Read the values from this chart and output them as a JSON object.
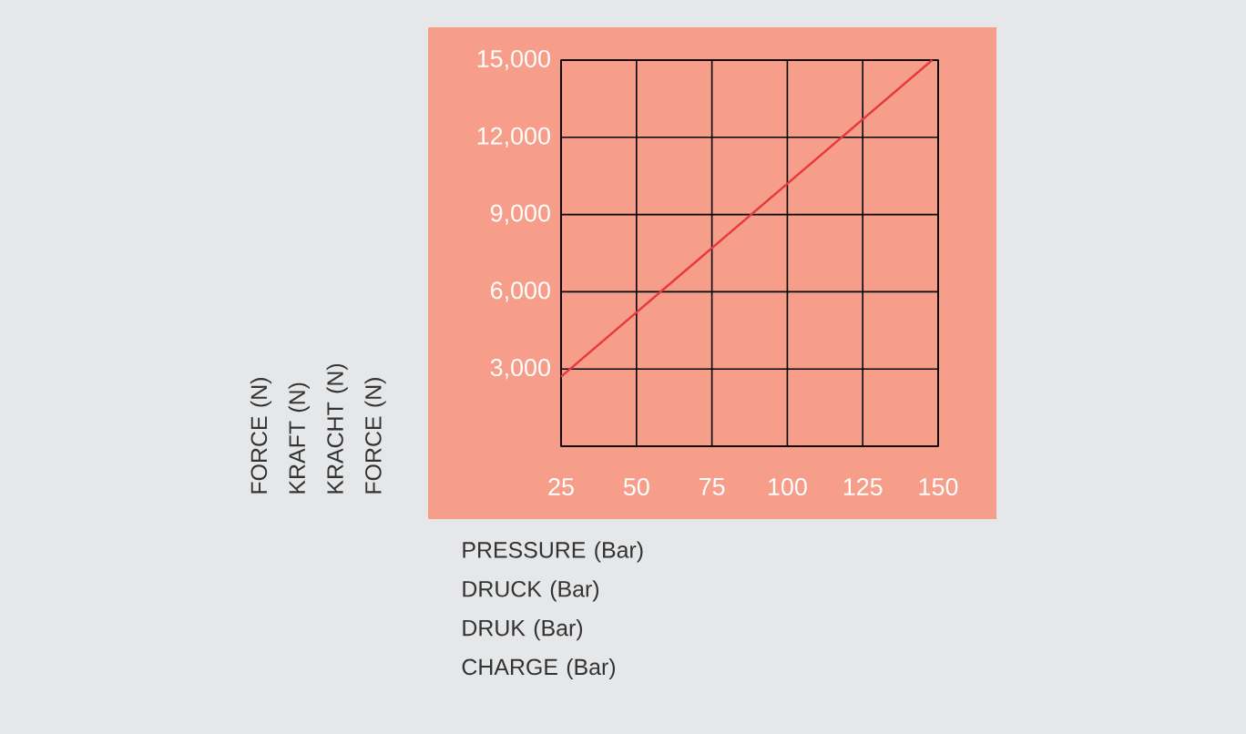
{
  "chart_data": {
    "type": "line",
    "xlabel": "PRESSURE (Bar)\nDRUCK (Bar)\nDRUK (Bar)\nCHARGE (Bar)",
    "ylabel": "FORCE (N)\nKRAFT (N)\nKRACHT (N)\nFORCE (N)",
    "x": [
      25,
      148
    ],
    "values": [
      2700,
      15000
    ],
    "color": "#e8383d",
    "xlim": [
      25,
      150
    ],
    "ylim": [
      0,
      15000
    ],
    "xticks": [
      25,
      50,
      75,
      100,
      125,
      150
    ],
    "yticks": [
      {
        "value": 0,
        "label": null
      },
      {
        "value": 3000,
        "label": "3,000"
      },
      {
        "value": 6000,
        "label": "6,000"
      },
      {
        "value": 9000,
        "label": "9,000"
      },
      {
        "value": 12000,
        "label": "12,000"
      },
      {
        "value": 15000,
        "label": "15,000"
      }
    ],
    "grid": true
  }
}
